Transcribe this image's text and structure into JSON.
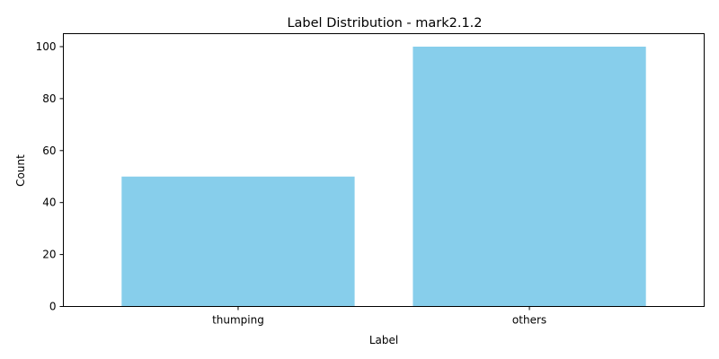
{
  "chart_data": {
    "type": "bar",
    "title": "Label Distribution - mark2.1.2",
    "xlabel": "Label",
    "ylabel": "Count",
    "categories": [
      "thumping",
      "others"
    ],
    "values": [
      50,
      100
    ],
    "ylim": [
      0,
      105
    ],
    "yticks": [
      0,
      20,
      40,
      60,
      80,
      100
    ],
    "bar_color": "#87ceeb",
    "grid": false,
    "legend": "none"
  }
}
